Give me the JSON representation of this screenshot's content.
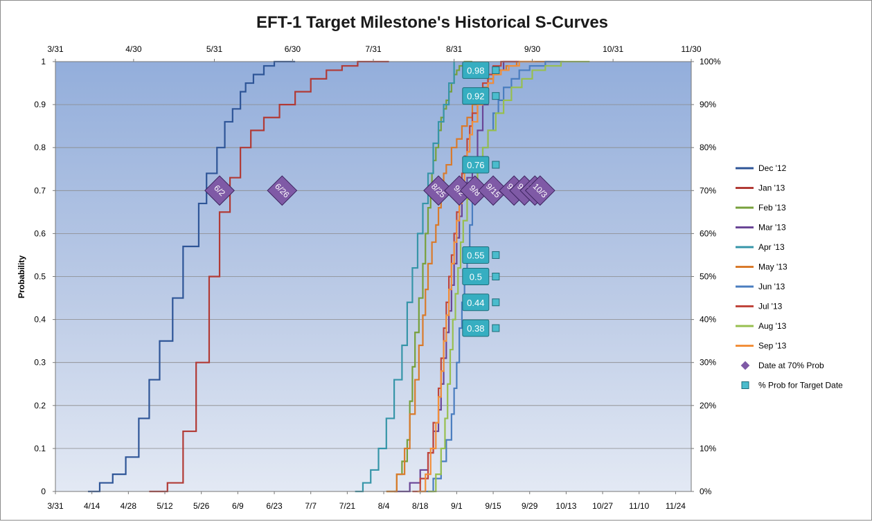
{
  "chart_data": {
    "type": "line",
    "title": "EFT-1 Target Milestone's Historical S-Curves",
    "ylabel": "Probability",
    "ylim": [
      0,
      1
    ],
    "y_left_ticks": [
      "0",
      "0.1",
      "0.2",
      "0.3",
      "0.4",
      "0.5",
      "0.6",
      "0.7",
      "0.8",
      "0.9",
      "1"
    ],
    "y_right_ticks": [
      "0%",
      "10%",
      "20%",
      "30%",
      "40%",
      "50%",
      "60%",
      "70%",
      "80%",
      "90%",
      "100%"
    ],
    "x_bottom_ticks": [
      "3/31",
      "4/14",
      "4/28",
      "5/12",
      "5/26",
      "6/9",
      "6/23",
      "7/7",
      "7/21",
      "8/4",
      "8/18",
      "9/1",
      "9/15",
      "9/29",
      "10/13",
      "10/27",
      "11/10",
      "11/24"
    ],
    "x_top_ticks": [
      "3/31",
      "4/30",
      "5/31",
      "6/30",
      "7/31",
      "8/31",
      "9/30",
      "10/31",
      "11/30"
    ],
    "grid": true,
    "legend_position": "right",
    "series": [
      {
        "name": "Dec '12",
        "color": "#2e5597",
        "x": [
          12.5,
          17,
          22,
          27,
          32,
          36,
          40,
          45,
          49,
          55,
          58,
          62,
          65,
          68,
          71,
          73,
          76,
          80,
          84,
          88,
          92
        ],
        "y": [
          0,
          0.02,
          0.04,
          0.08,
          0.17,
          0.26,
          0.35,
          0.45,
          0.57,
          0.67,
          0.74,
          0.8,
          0.86,
          0.89,
          0.93,
          0.95,
          0.97,
          0.99,
          1.0,
          1.0,
          1.0
        ]
      },
      {
        "name": "Jan '13",
        "color": "#b13a35",
        "x": [
          36,
          43,
          49,
          54,
          59,
          63,
          67,
          71,
          75,
          80,
          86,
          92,
          98,
          104,
          110,
          116,
          122,
          128
        ],
        "y": [
          0,
          0.02,
          0.14,
          0.3,
          0.5,
          0.65,
          0.73,
          0.8,
          0.84,
          0.87,
          0.9,
          0.93,
          0.96,
          0.98,
          0.99,
          1.0,
          1.0,
          1.0
        ]
      },
      {
        "name": "Feb '13",
        "color": "#77a03b",
        "x": [
          127,
          131,
          133,
          135,
          136,
          137,
          138,
          139.5,
          141,
          142,
          143,
          144,
          144.5,
          145,
          146,
          147,
          148,
          149,
          150,
          151,
          152,
          153,
          154,
          155,
          157,
          160
        ],
        "y": [
          0,
          0.04,
          0.07,
          0.12,
          0.21,
          0.29,
          0.37,
          0.45,
          0.53,
          0.6,
          0.66,
          0.7,
          0.74,
          0.77,
          0.8,
          0.84,
          0.87,
          0.89,
          0.91,
          0.93,
          0.95,
          0.97,
          0.98,
          0.99,
          1.0,
          1.0
        ]
      },
      {
        "name": "Mar '13",
        "color": "#6a4596",
        "x": [
          130,
          136,
          140,
          143,
          145,
          147,
          148,
          149,
          150,
          151,
          152,
          153,
          154,
          155,
          156,
          157,
          158,
          160,
          162,
          164,
          166,
          168,
          172,
          177
        ],
        "y": [
          0,
          0.02,
          0.05,
          0.09,
          0.14,
          0.19,
          0.25,
          0.31,
          0.37,
          0.42,
          0.48,
          0.53,
          0.59,
          0.64,
          0.68,
          0.7,
          0.73,
          0.76,
          0.84,
          0.9,
          0.95,
          0.98,
          1.0,
          1.0
        ]
      },
      {
        "name": "Apr '13",
        "color": "#3695a8",
        "x": [
          115,
          118,
          121,
          124,
          127,
          130,
          133,
          135,
          137,
          139,
          141,
          143,
          145,
          147,
          149,
          151,
          153
        ],
        "y": [
          0,
          0.02,
          0.05,
          0.1,
          0.17,
          0.26,
          0.34,
          0.44,
          0.52,
          0.6,
          0.67,
          0.74,
          0.81,
          0.86,
          0.9,
          0.95,
          1.0
        ]
      },
      {
        "name": "May '13",
        "color": "#d97a2b",
        "x": [
          127,
          131,
          134,
          136,
          138,
          139.5,
          141,
          142,
          143,
          144.5,
          146,
          147,
          148,
          149,
          150,
          152,
          154,
          156,
          158,
          160,
          162,
          164,
          166,
          168,
          170,
          173,
          177,
          182,
          190
        ],
        "y": [
          0,
          0.04,
          0.1,
          0.18,
          0.26,
          0.34,
          0.41,
          0.47,
          0.53,
          0.58,
          0.62,
          0.66,
          0.7,
          0.74,
          0.76,
          0.8,
          0.82,
          0.85,
          0.87,
          0.9,
          0.92,
          0.94,
          0.96,
          0.97,
          0.98,
          0.99,
          1.0,
          1.0,
          1.0
        ]
      },
      {
        "name": "Jun '13",
        "color": "#4a7dbf",
        "x": [
          140,
          145,
          148,
          150,
          152,
          153,
          154,
          155,
          156,
          157,
          158,
          159,
          160,
          161,
          162,
          164,
          166,
          168,
          170,
          172,
          175,
          178,
          182,
          188,
          195
        ],
        "y": [
          0,
          0.03,
          0.07,
          0.12,
          0.18,
          0.24,
          0.3,
          0.38,
          0.44,
          0.5,
          0.56,
          0.62,
          0.68,
          0.72,
          0.76,
          0.8,
          0.84,
          0.88,
          0.91,
          0.94,
          0.96,
          0.98,
          0.99,
          1.0,
          1.0
        ]
      },
      {
        "name": "Jul '13",
        "color": "#c0453c",
        "x": [
          137,
          140,
          143,
          145,
          147,
          148,
          149,
          150,
          151,
          152,
          153,
          154,
          155,
          156,
          157,
          158,
          159,
          160,
          162,
          164,
          166,
          168,
          171,
          174,
          178
        ],
        "y": [
          0,
          0.03,
          0.09,
          0.16,
          0.24,
          0.31,
          0.38,
          0.44,
          0.5,
          0.55,
          0.6,
          0.65,
          0.7,
          0.74,
          0.78,
          0.82,
          0.85,
          0.88,
          0.92,
          0.95,
          0.97,
          0.99,
          1.0,
          1.0,
          1.0
        ]
      },
      {
        "name": "Aug '13",
        "color": "#97bf4f",
        "x": [
          143,
          146,
          148,
          149.5,
          150.5,
          151.5,
          152.5,
          153.5,
          154.5,
          155.5,
          156.5,
          158,
          160,
          162,
          164,
          166,
          169,
          172,
          175,
          179,
          183,
          188,
          194,
          205
        ],
        "y": [
          0,
          0.04,
          0.1,
          0.17,
          0.25,
          0.33,
          0.4,
          0.46,
          0.52,
          0.58,
          0.63,
          0.68,
          0.72,
          0.76,
          0.8,
          0.84,
          0.88,
          0.91,
          0.94,
          0.96,
          0.98,
          0.99,
          1.0,
          1.0
        ]
      },
      {
        "name": "Sep '13",
        "color": "#f28f3a",
        "x": [
          139,
          142,
          144,
          146,
          147,
          148,
          149,
          150,
          151,
          152,
          153,
          154,
          155,
          156,
          157,
          158,
          159,
          160,
          162,
          164,
          166,
          168,
          171,
          174,
          178,
          184
        ],
        "y": [
          0,
          0.04,
          0.1,
          0.16,
          0.22,
          0.28,
          0.35,
          0.41,
          0.47,
          0.53,
          0.58,
          0.63,
          0.67,
          0.71,
          0.75,
          0.79,
          0.83,
          0.86,
          0.9,
          0.93,
          0.95,
          0.97,
          0.98,
          0.99,
          1.0,
          1.0
        ]
      }
    ],
    "date_at_70pct_prob": {
      "name": "Date at 70% Prob",
      "color": "#7f5aa6",
      "points": [
        {
          "x": 63,
          "y": 0.7,
          "label": "6/2"
        },
        {
          "x": 87,
          "y": 0.7,
          "label": "6/26"
        },
        {
          "x": 147,
          "y": 0.7,
          "label": "8/25"
        },
        {
          "x": 155,
          "y": 0.7,
          "label": "9/2"
        },
        {
          "x": 161,
          "y": 0.7,
          "label": "9/8"
        },
        {
          "x": 168,
          "y": 0.7,
          "label": "9/15"
        },
        {
          "x": 176,
          "y": 0.7,
          "label": "9/23"
        },
        {
          "x": 180,
          "y": 0.7,
          "label": "9/27"
        },
        {
          "x": 184,
          "y": 0.7,
          "label": "10/1"
        },
        {
          "x": 186,
          "y": 0.7,
          "label": "10/3"
        }
      ]
    },
    "pct_prob_for_target_date": {
      "name": "% Prob for Target Date",
      "color": "#4bbccd",
      "target_x": 169,
      "points": [
        {
          "y": 0.98,
          "label": "0.98"
        },
        {
          "y": 0.92,
          "label": "0.92"
        },
        {
          "y": 0.76,
          "label": "0.76"
        },
        {
          "y": 0.55,
          "label": "0.55"
        },
        {
          "y": 0.5,
          "label": "0.5"
        },
        {
          "y": 0.44,
          "label": "0.44"
        },
        {
          "y": 0.38,
          "label": "0.38"
        }
      ]
    }
  }
}
